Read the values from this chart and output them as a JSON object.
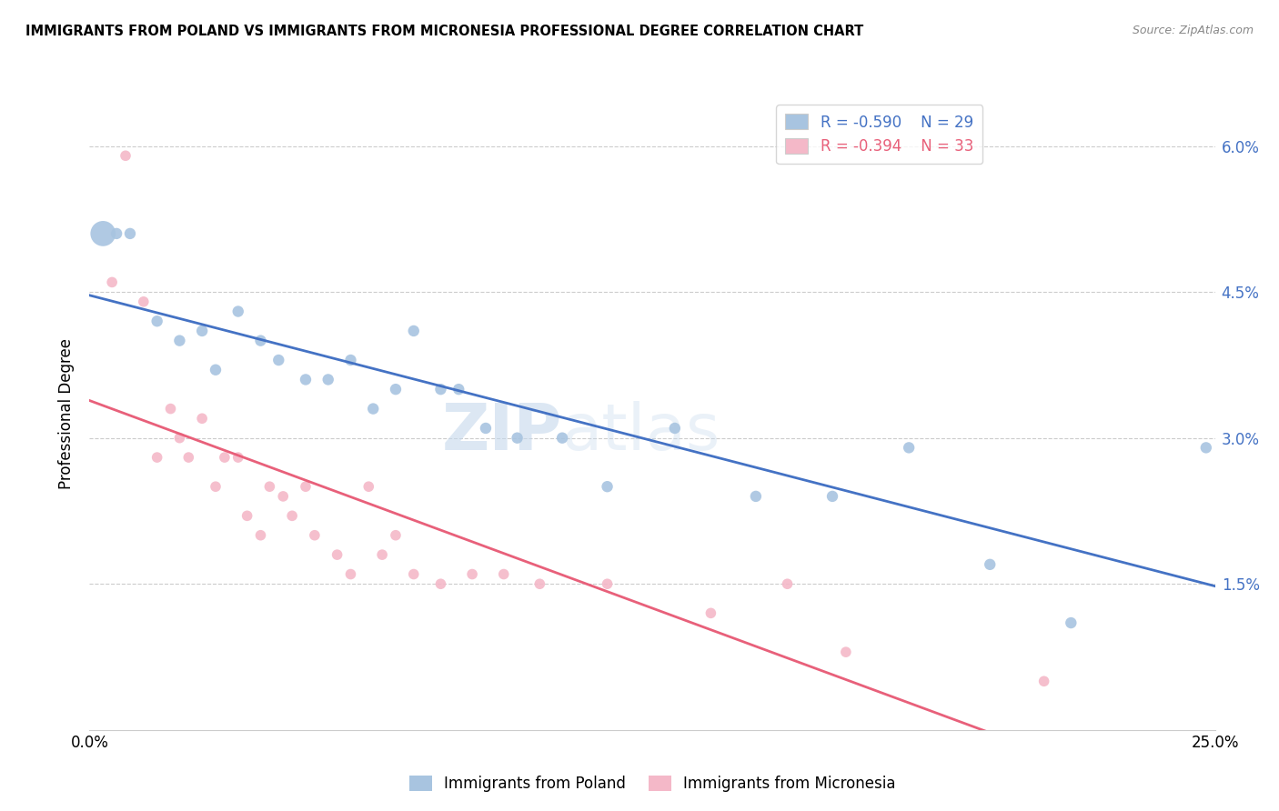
{
  "title": "IMMIGRANTS FROM POLAND VS IMMIGRANTS FROM MICRONESIA PROFESSIONAL DEGREE CORRELATION CHART",
  "source": "Source: ZipAtlas.com",
  "ylabel": "Professional Degree",
  "xlim": [
    0.0,
    0.25
  ],
  "ylim": [
    0.0,
    0.065
  ],
  "poland_R": -0.59,
  "poland_N": 29,
  "micronesia_R": -0.394,
  "micronesia_N": 33,
  "poland_color": "#a8c4e0",
  "poland_line_color": "#4472c4",
  "micronesia_color": "#f4b8c8",
  "micronesia_line_color": "#e8607a",
  "watermark_zip": "ZIP",
  "watermark_atlas": "atlas",
  "poland_x": [
    0.003,
    0.006,
    0.009,
    0.015,
    0.02,
    0.025,
    0.028,
    0.033,
    0.038,
    0.042,
    0.048,
    0.053,
    0.058,
    0.063,
    0.068,
    0.072,
    0.078,
    0.082,
    0.088,
    0.095,
    0.105,
    0.115,
    0.13,
    0.148,
    0.165,
    0.182,
    0.2,
    0.218,
    0.248
  ],
  "poland_y": [
    0.051,
    0.051,
    0.051,
    0.042,
    0.04,
    0.041,
    0.037,
    0.043,
    0.04,
    0.038,
    0.036,
    0.036,
    0.038,
    0.033,
    0.035,
    0.041,
    0.035,
    0.035,
    0.031,
    0.03,
    0.03,
    0.025,
    0.031,
    0.024,
    0.024,
    0.029,
    0.017,
    0.011,
    0.029
  ],
  "poland_size": [
    400,
    80,
    80,
    80,
    80,
    80,
    80,
    80,
    80,
    80,
    80,
    80,
    80,
    80,
    80,
    80,
    80,
    80,
    80,
    80,
    80,
    80,
    80,
    80,
    80,
    80,
    80,
    80,
    80
  ],
  "micronesia_x": [
    0.005,
    0.008,
    0.012,
    0.015,
    0.018,
    0.02,
    0.022,
    0.025,
    0.028,
    0.03,
    0.033,
    0.035,
    0.038,
    0.04,
    0.043,
    0.045,
    0.048,
    0.05,
    0.055,
    0.058,
    0.062,
    0.065,
    0.068,
    0.072,
    0.078,
    0.085,
    0.092,
    0.1,
    0.115,
    0.138,
    0.155,
    0.168,
    0.212
  ],
  "micronesia_y": [
    0.046,
    0.059,
    0.044,
    0.028,
    0.033,
    0.03,
    0.028,
    0.032,
    0.025,
    0.028,
    0.028,
    0.022,
    0.02,
    0.025,
    0.024,
    0.022,
    0.025,
    0.02,
    0.018,
    0.016,
    0.025,
    0.018,
    0.02,
    0.016,
    0.015,
    0.016,
    0.016,
    0.015,
    0.015,
    0.012,
    0.015,
    0.008,
    0.005
  ]
}
